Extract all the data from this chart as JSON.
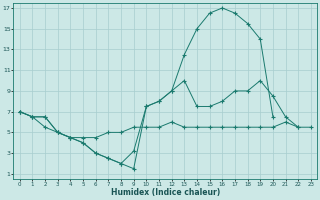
{
  "xlabel": "Humidex (Indice chaleur)",
  "bg_color": "#cce8e6",
  "grid_color": "#a8cece",
  "line_color": "#1a7a6e",
  "xlim": [
    -0.5,
    23.5
  ],
  "ylim": [
    0.5,
    17.5
  ],
  "xticks": [
    0,
    1,
    2,
    3,
    4,
    5,
    6,
    7,
    8,
    9,
    10,
    11,
    12,
    13,
    14,
    15,
    16,
    17,
    18,
    19,
    20,
    21,
    22,
    23
  ],
  "yticks": [
    1,
    3,
    5,
    7,
    9,
    11,
    13,
    15,
    17
  ],
  "line1_x": [
    0,
    1,
    2,
    3,
    4,
    5,
    6,
    7,
    8,
    9,
    10,
    11,
    12,
    13,
    14,
    15,
    16,
    17,
    18,
    19,
    20
  ],
  "line1_y": [
    7,
    6.5,
    6.5,
    5,
    4.5,
    4,
    3,
    2.5,
    2,
    1.5,
    7.5,
    8,
    9,
    12.5,
    15,
    16.5,
    17,
    16.5,
    15.5,
    14,
    6.5
  ],
  "line2_x": [
    0,
    1,
    2,
    3,
    4,
    5,
    6,
    7,
    8,
    9,
    10,
    11,
    12,
    13,
    14,
    15,
    16,
    17,
    18,
    19,
    20,
    21,
    22
  ],
  "line2_y": [
    7,
    6.5,
    6.5,
    5,
    4.5,
    4,
    3,
    2.5,
    2,
    3.2,
    7.5,
    8,
    9,
    10,
    7.5,
    7.5,
    8,
    9,
    9,
    10,
    8.5,
    6.5,
    5.5
  ],
  "line3_x": [
    0,
    1,
    2,
    3,
    4,
    5,
    6,
    7,
    8,
    9,
    10,
    11,
    12,
    13,
    14,
    15,
    16,
    17,
    18,
    19,
    20,
    21,
    22,
    23
  ],
  "line3_y": [
    7,
    6.5,
    5.5,
    5,
    4.5,
    4.5,
    4.5,
    5,
    5,
    5.5,
    5.5,
    5.5,
    6,
    5.5,
    5.5,
    5.5,
    5.5,
    5.5,
    5.5,
    5.5,
    5.5,
    6,
    5.5,
    5.5
  ]
}
